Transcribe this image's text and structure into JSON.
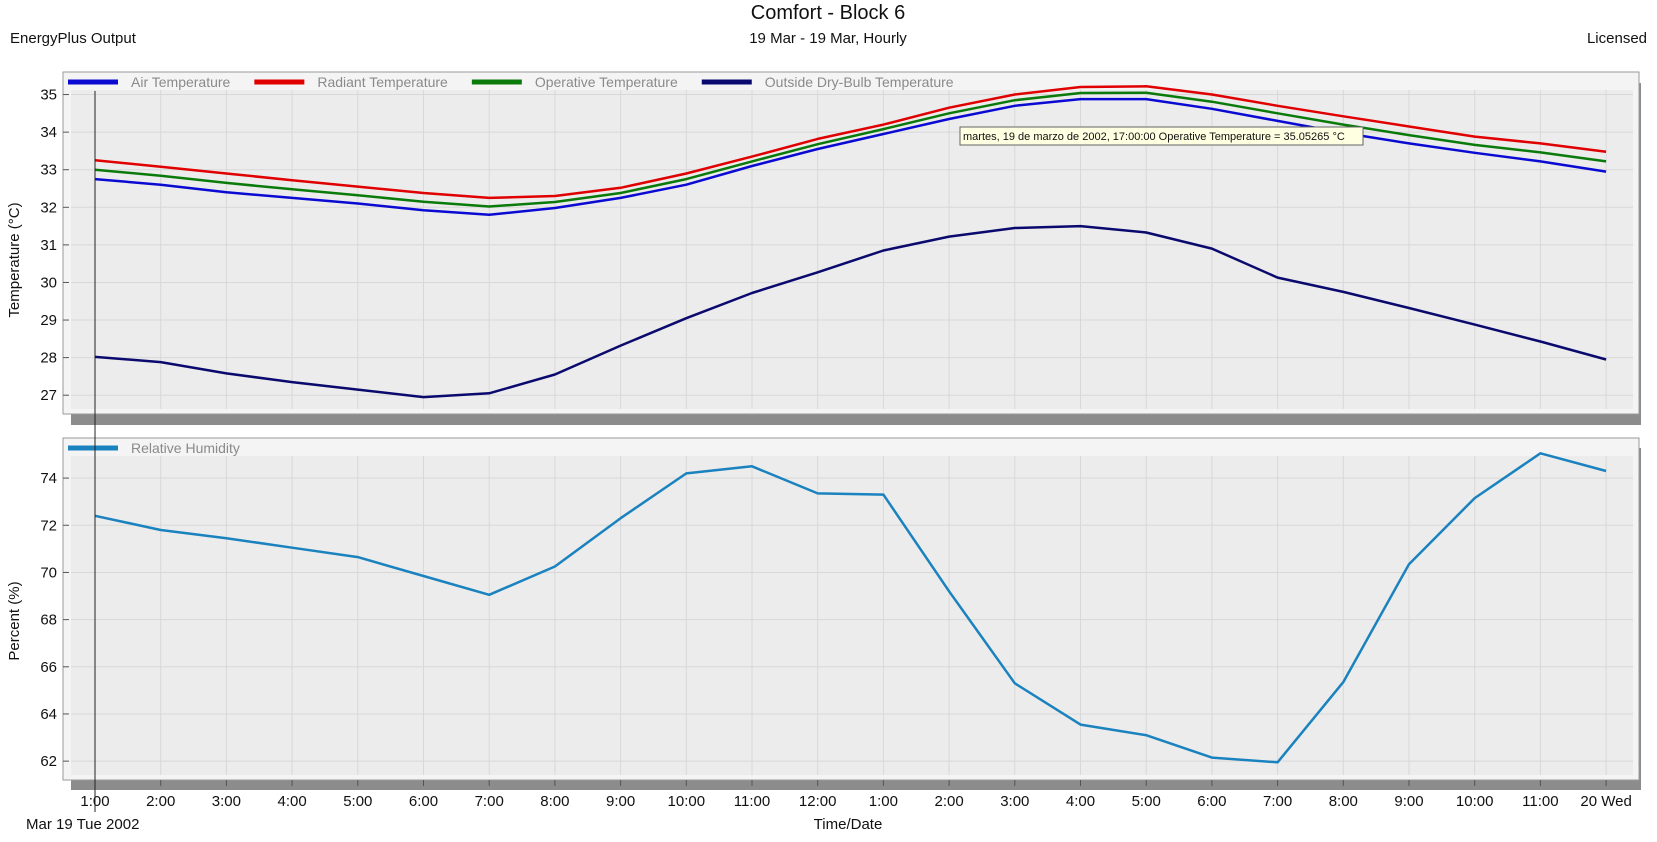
{
  "header": {
    "title": "Comfort - Block 6",
    "left_label": "EnergyPlus Output",
    "subtitle": "19 Mar - 19 Mar, Hourly",
    "right_label": "Licensed"
  },
  "footer": {
    "date_label": "Mar  19 Tue 2002",
    "xlabel": "Time/Date"
  },
  "tooltip": {
    "text": "martes, 19 de marzo de 2002, 17:00:00  Operative Temperature = 35.05265 °C"
  },
  "colors": {
    "air": "#0a0ad2",
    "radiant": "#e00000",
    "operative": "#0a7a0a",
    "outside": "#0a0a6e",
    "humidity": "#1a82be",
    "plot_bg": "#ececec",
    "shadow": "#8c8c8c"
  },
  "chart_data": [
    {
      "type": "line",
      "ylabel": "Temperature (°C)",
      "ylim": [
        26.5,
        35.6
      ],
      "yticks": [
        27,
        28,
        29,
        30,
        31,
        32,
        33,
        34,
        35
      ],
      "x": [
        "1:00",
        "2:00",
        "3:00",
        "4:00",
        "5:00",
        "6:00",
        "7:00",
        "8:00",
        "9:00",
        "10:00",
        "11:00",
        "12:00",
        "1:00",
        "2:00",
        "3:00",
        "4:00",
        "5:00",
        "6:00",
        "7:00",
        "8:00",
        "9:00",
        "10:00",
        "11:00",
        "20 Wed"
      ],
      "grid": true,
      "legend": "top-left",
      "series": [
        {
          "name": "Air Temperature",
          "values": [
            32.75,
            32.6,
            32.4,
            32.25,
            32.1,
            31.92,
            31.8,
            31.98,
            32.25,
            32.6,
            33.1,
            33.55,
            33.95,
            34.35,
            34.7,
            34.88,
            34.88,
            34.62,
            34.3,
            33.98,
            33.7,
            33.45,
            33.22,
            32.95
          ]
        },
        {
          "name": "Radiant Temperature",
          "values": [
            33.25,
            33.08,
            32.9,
            32.72,
            32.55,
            32.38,
            32.25,
            32.3,
            32.52,
            32.9,
            33.35,
            33.82,
            34.2,
            34.65,
            35.0,
            35.2,
            35.22,
            35.0,
            34.7,
            34.42,
            34.15,
            33.88,
            33.7,
            33.48
          ]
        },
        {
          "name": "Operative Temperature",
          "values": [
            33.0,
            32.84,
            32.65,
            32.48,
            32.32,
            32.15,
            32.02,
            32.14,
            32.38,
            32.75,
            33.22,
            33.68,
            34.08,
            34.5,
            34.85,
            35.04,
            35.05,
            34.81,
            34.5,
            34.2,
            33.92,
            33.66,
            33.46,
            33.22
          ]
        },
        {
          "name": "Outside Dry-Bulb Temperature",
          "values": [
            28.02,
            27.88,
            27.58,
            27.35,
            27.15,
            26.95,
            27.05,
            27.55,
            28.32,
            29.05,
            29.72,
            30.27,
            30.85,
            31.22,
            31.45,
            31.5,
            31.33,
            30.9,
            30.13,
            29.75,
            29.32,
            28.88,
            28.43,
            27.95
          ]
        }
      ]
    },
    {
      "type": "line",
      "ylabel": "Percent (%)",
      "ylim": [
        61.2,
        75.7
      ],
      "yticks": [
        62,
        64,
        66,
        68,
        70,
        72,
        74
      ],
      "x": [
        "1:00",
        "2:00",
        "3:00",
        "4:00",
        "5:00",
        "6:00",
        "7:00",
        "8:00",
        "9:00",
        "10:00",
        "11:00",
        "12:00",
        "1:00",
        "2:00",
        "3:00",
        "4:00",
        "5:00",
        "6:00",
        "7:00",
        "8:00",
        "9:00",
        "10:00",
        "11:00",
        "20 Wed"
      ],
      "grid": true,
      "legend": "top-left",
      "series": [
        {
          "name": "Relative Humidity",
          "values": [
            72.4,
            71.8,
            71.45,
            71.05,
            70.65,
            69.85,
            69.05,
            70.25,
            72.3,
            74.2,
            74.5,
            73.35,
            73.3,
            69.2,
            65.3,
            63.55,
            63.1,
            62.15,
            61.95,
            65.35,
            70.35,
            73.15,
            75.05,
            74.3
          ]
        }
      ]
    }
  ]
}
